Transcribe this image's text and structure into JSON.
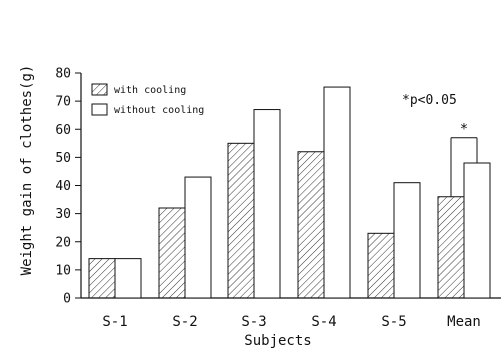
{
  "chart_data": {
    "type": "bar",
    "ylabel": "Weight gain of clothes(g)",
    "xlabel": "Subjects",
    "categories": [
      "S-1",
      "S-2",
      "S-3",
      "S-4",
      "S-5",
      "Mean"
    ],
    "ylim": [
      0,
      80
    ],
    "yticks": [
      0,
      10,
      20,
      30,
      40,
      50,
      60,
      70,
      80
    ],
    "series": [
      {
        "name": "with cooling",
        "values": [
          14,
          32,
          55,
          52,
          23,
          36
        ],
        "pattern": "hatched"
      },
      {
        "name": "without cooling",
        "values": [
          14,
          43,
          67,
          75,
          41,
          48
        ],
        "pattern": "open"
      }
    ],
    "annotation": "*p<0.05",
    "significance_marker": "*",
    "significance_category": "Mean",
    "legend_position": "top-left",
    "grid": false
  }
}
